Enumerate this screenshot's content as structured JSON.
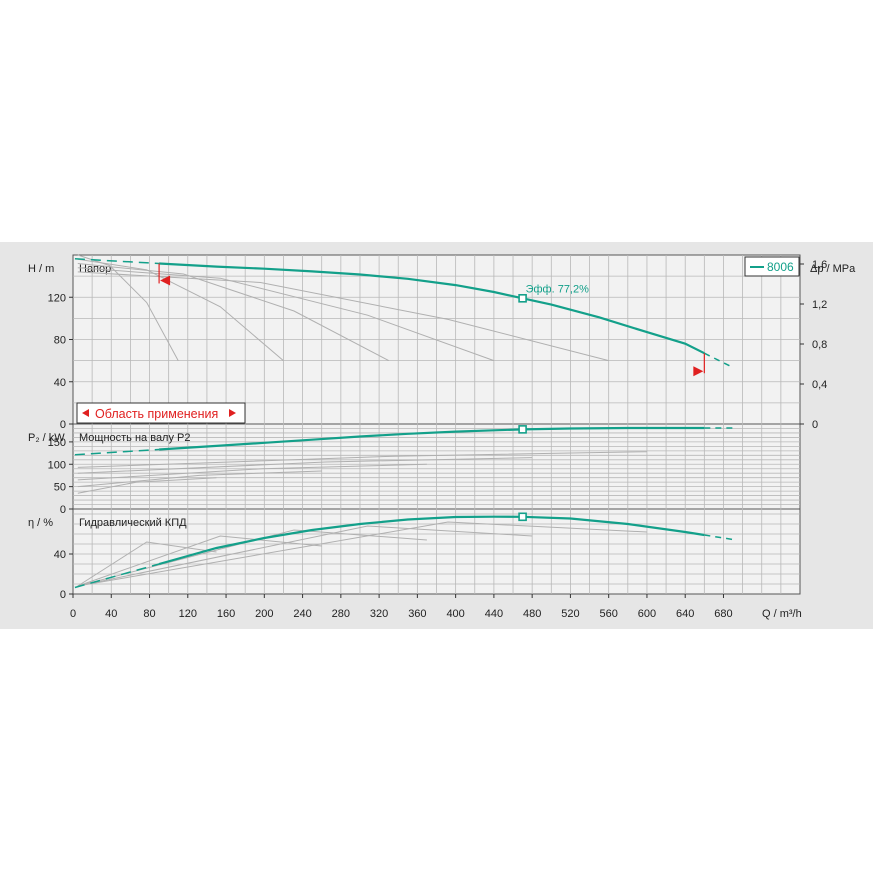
{
  "colors": {
    "accent": "#13a08a",
    "panel_bg": "#e6e6e6",
    "plot_bg": "#f2f2f2",
    "grid": "#b8b8b8",
    "range_marker": "#e02020",
    "secondary_curves": "#b0b0b0"
  },
  "legend": {
    "label": "8006",
    "placement": "top-right"
  },
  "application_range": {
    "label": "Область применения",
    "q_min": 90,
    "q_max": 660
  },
  "chart_data": [
    {
      "type": "line",
      "title": "Напор",
      "ylabel": "H / m",
      "y2label": "Δp / MPa",
      "xlim": [
        0,
        760
      ],
      "ylim": [
        0,
        160
      ],
      "y_ticks": [
        "0",
        "40",
        "80",
        "120"
      ],
      "y2_ticks": [
        "0",
        "0,4",
        "0,8",
        "1,2",
        "1,6"
      ],
      "grid": true,
      "series": [
        {
          "name": "8006",
          "x": [
            90,
            150,
            200,
            250,
            300,
            350,
            400,
            440,
            470,
            500,
            550,
            600,
            640,
            660
          ],
          "y": [
            152,
            149,
            147,
            144.5,
            141.5,
            137.5,
            131.5,
            125,
            119,
            113,
            101,
            87,
            76,
            67
          ]
        }
      ],
      "annotations": [
        {
          "text": "Эфф.  77,2%",
          "x": 470,
          "y": 119
        }
      ]
    },
    {
      "type": "line",
      "title": "Мощность на валу P2",
      "ylabel": "P₂ / kW",
      "xlim": [
        0,
        760
      ],
      "ylim": [
        0,
        190
      ],
      "y_ticks": [
        "0",
        "50",
        "100",
        "150"
      ],
      "grid": true,
      "series": [
        {
          "name": "8006",
          "x": [
            90,
            150,
            200,
            250,
            300,
            350,
            400,
            440,
            470,
            520,
            580,
            640,
            660
          ],
          "y": [
            133,
            141,
            148,
            155,
            162,
            168,
            173,
            176,
            178,
            180,
            181,
            181,
            181
          ]
        }
      ]
    },
    {
      "type": "line",
      "title": "Гидравлический КПД",
      "ylabel": "η / %",
      "xlabel": "Q / m³/h",
      "xlim": [
        0,
        760
      ],
      "x_ticks": [
        "0",
        "40",
        "80",
        "120",
        "160",
        "200",
        "240",
        "280",
        "320",
        "360",
        "400",
        "440",
        "480",
        "520",
        "560",
        "600",
        "640",
        "680"
      ],
      "ylim": [
        0,
        85
      ],
      "y_ticks": [
        "0",
        "40"
      ],
      "grid": true,
      "series": [
        {
          "name": "8006",
          "x": [
            90,
            150,
            200,
            250,
            300,
            350,
            400,
            440,
            470,
            520,
            580,
            640,
            660
          ],
          "y": [
            30,
            46,
            56,
            64,
            70,
            74.5,
            77,
            77.3,
            77.2,
            75.5,
            70,
            62,
            59
          ]
        }
      ]
    }
  ]
}
